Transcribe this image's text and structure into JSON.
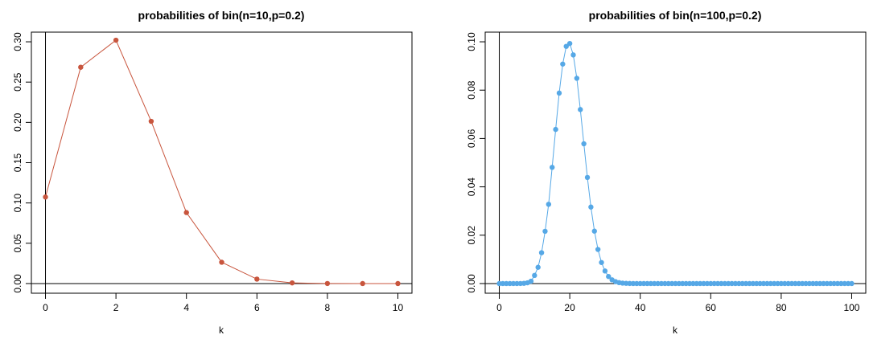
{
  "chart_data": [
    {
      "type": "line",
      "title": "probabilities of bin(n=10,p=0.2)",
      "xlabel": "k",
      "ylabel": "",
      "color": "#c8553d",
      "xlim": [
        0,
        10
      ],
      "ylim": [
        0,
        0.3
      ],
      "xticks": [
        0,
        2,
        4,
        6,
        8,
        10
      ],
      "xtick_labels": [
        "0",
        "2",
        "4",
        "6",
        "8",
        "10"
      ],
      "yticks": [
        0,
        0.05,
        0.1,
        0.15,
        0.2,
        0.25,
        0.3
      ],
      "ytick_labels": [
        "0.00",
        "0.05",
        "0.10",
        "0.15",
        "0.20",
        "0.25",
        "0.30"
      ],
      "x": [
        0,
        1,
        2,
        3,
        4,
        5,
        6,
        7,
        8,
        9,
        10
      ],
      "y": [
        0.107374,
        0.268435,
        0.30199,
        0.201327,
        0.08808,
        0.026424,
        0.005505,
        0.000786,
        7.4e-05,
        4e-06,
        1e-07
      ],
      "reference_lines": {
        "h": 0,
        "v": 0
      },
      "grid": false
    },
    {
      "type": "line",
      "title": "probabilities of bin(n=100,p=0.2)",
      "xlabel": "k",
      "ylabel": "",
      "color": "#56a8e6",
      "xlim": [
        0,
        100
      ],
      "ylim": [
        0,
        0.1
      ],
      "xticks": [
        0,
        20,
        40,
        60,
        80,
        100
      ],
      "xtick_labels": [
        "0",
        "20",
        "40",
        "60",
        "80",
        "100"
      ],
      "yticks": [
        0,
        0.02,
        0.04,
        0.06,
        0.08,
        0.1
      ],
      "ytick_labels": [
        "0.00",
        "0.02",
        "0.04",
        "0.06",
        "0.08",
        "0.10"
      ],
      "x": [
        0,
        1,
        2,
        3,
        4,
        5,
        6,
        7,
        8,
        9,
        10,
        11,
        12,
        13,
        14,
        15,
        16,
        17,
        18,
        19,
        20,
        21,
        22,
        23,
        24,
        25,
        26,
        27,
        28,
        29,
        30,
        31,
        32,
        33,
        34,
        35,
        36,
        37,
        38,
        39,
        40,
        41,
        42,
        43,
        44,
        45,
        46,
        47,
        48,
        49,
        50,
        51,
        52,
        53,
        54,
        55,
        56,
        57,
        58,
        59,
        60,
        61,
        62,
        63,
        64,
        65,
        66,
        67,
        68,
        69,
        70,
        71,
        72,
        73,
        74,
        75,
        76,
        77,
        78,
        79,
        80,
        81,
        82,
        83,
        84,
        85,
        86,
        87,
        88,
        89,
        90,
        91,
        92,
        93,
        94,
        95,
        96,
        97,
        98,
        99,
        100
      ],
      "y": [
        0,
        0,
        0,
        0,
        0,
        0,
        2e-05,
        9e-05,
        0.00031,
        0.00096,
        0.00336,
        0.00673,
        0.01276,
        0.02162,
        0.03278,
        0.04807,
        0.06376,
        0.07879,
        0.09078,
        0.09812,
        0.0993,
        0.09457,
        0.0849,
        0.07199,
        0.05781,
        0.04388,
        0.03164,
        0.02168,
        0.0141,
        0.0087,
        0.00519,
        0.0029,
        0.00154,
        0.00078,
        0.00038,
        0.00017,
        8e-05,
        3e-05,
        1e-05,
        0,
        0,
        0,
        0,
        0,
        0,
        0,
        0,
        0,
        0,
        0,
        0,
        0,
        0,
        0,
        0,
        0,
        0,
        0,
        0,
        0,
        0,
        0,
        0,
        0,
        0,
        0,
        0,
        0,
        0,
        0,
        0,
        0,
        0,
        0,
        0,
        0,
        0,
        0,
        0,
        0,
        0,
        0,
        0,
        0,
        0,
        0,
        0,
        0,
        0,
        0,
        0,
        0,
        0,
        0,
        0,
        0,
        0,
        0,
        0,
        0,
        0
      ],
      "reference_lines": {
        "h": 0,
        "v": 0
      },
      "grid": false
    }
  ]
}
